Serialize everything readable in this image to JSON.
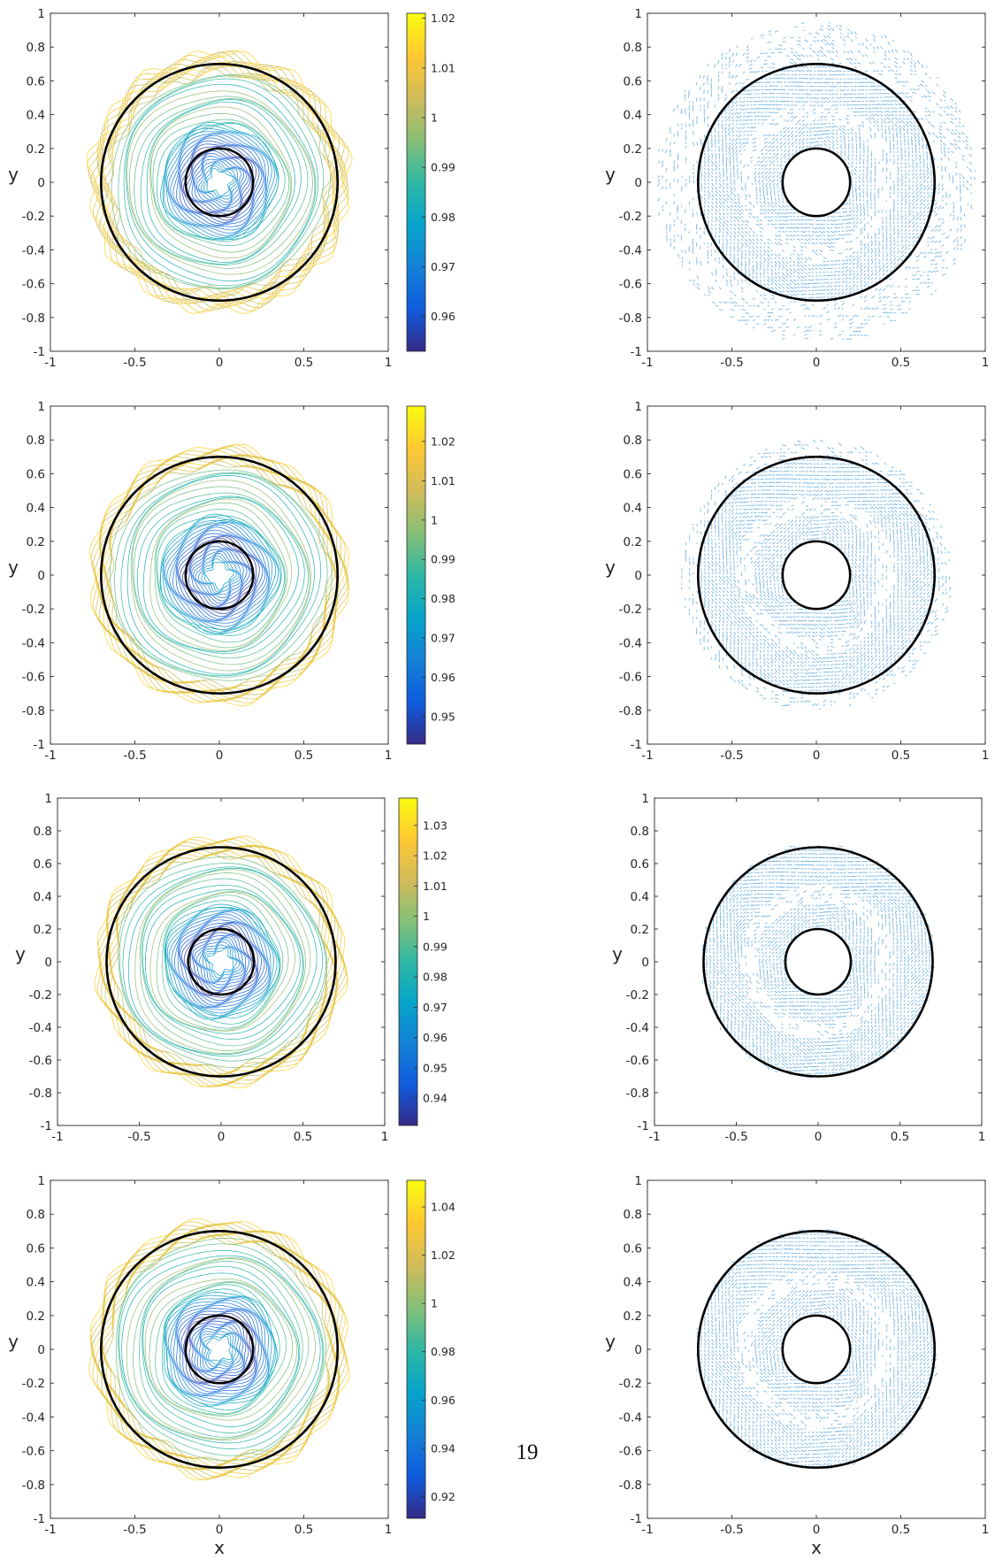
{
  "page_number": "19",
  "axes": {
    "x_ticks": [
      "-1",
      "-0.5",
      "0",
      "0.5",
      "1"
    ],
    "y_ticks": [
      "-1",
      "-0.8",
      "-0.6",
      "-0.4",
      "-0.2",
      "0",
      "0.2",
      "0.4",
      "0.6",
      "0.8",
      "1"
    ],
    "xlabel": "x",
    "ylabel": "y"
  },
  "colors": {
    "circle": "#000000",
    "quiver": "#4d9fdb",
    "parula": [
      "#352a87",
      "#0f5cdd",
      "#1481d6",
      "#06a4ca",
      "#2eb7a4",
      "#87bf77",
      "#d1bb59",
      "#fec832",
      "#f9fb0e"
    ]
  },
  "chart_data": [
    {
      "type": "contour",
      "panel": "row1-left",
      "xlim": [
        -1,
        1
      ],
      "ylim": [
        -1,
        1
      ],
      "circles_radius": [
        0.2,
        0.7
      ],
      "colorbar": {
        "min": 0.953,
        "max": 1.021,
        "ticks": [
          "0.96",
          "0.97",
          "0.98",
          "0.99",
          "1",
          "1.01",
          "1.02"
        ]
      }
    },
    {
      "type": "quiver",
      "panel": "row1-right",
      "xlim": [
        -1,
        1
      ],
      "ylim": [
        -1,
        1
      ],
      "circles_radius": [
        0.2,
        0.7
      ],
      "spread": 0.25
    },
    {
      "type": "contour",
      "panel": "row2-left",
      "xlim": [
        -1,
        1
      ],
      "ylim": [
        -1,
        1
      ],
      "circles_radius": [
        0.2,
        0.7
      ],
      "colorbar": {
        "min": 0.943,
        "max": 1.029,
        "ticks": [
          "0.95",
          "0.96",
          "0.97",
          "0.98",
          "0.99",
          "1",
          "1.01",
          "1.02"
        ]
      }
    },
    {
      "type": "quiver",
      "panel": "row2-right",
      "xlim": [
        -1,
        1
      ],
      "ylim": [
        -1,
        1
      ],
      "circles_radius": [
        0.2,
        0.7
      ],
      "spread": 0.1
    },
    {
      "type": "contour",
      "panel": "row3-left",
      "xlim": [
        -1,
        1
      ],
      "ylim": [
        -1,
        1
      ],
      "circles_radius": [
        0.2,
        0.7
      ],
      "colorbar": {
        "min": 0.931,
        "max": 1.039,
        "ticks": [
          "0.94",
          "0.95",
          "0.96",
          "0.97",
          "0.98",
          "0.99",
          "1",
          "1.01",
          "1.02",
          "1.03"
        ]
      }
    },
    {
      "type": "quiver",
      "panel": "row3-right",
      "xlim": [
        -1,
        1
      ],
      "ylim": [
        -1,
        1
      ],
      "circles_radius": [
        0.2,
        0.7
      ],
      "spread": 0.02
    },
    {
      "type": "contour",
      "panel": "row4-left",
      "xlim": [
        -1,
        1
      ],
      "ylim": [
        -1,
        1
      ],
      "circles_radius": [
        0.2,
        0.7
      ],
      "colorbar": {
        "min": 0.911,
        "max": 1.051,
        "ticks": [
          "0.92",
          "0.94",
          "0.96",
          "0.98",
          "1",
          "1.02",
          "1.04"
        ]
      }
    },
    {
      "type": "quiver",
      "panel": "row4-right",
      "xlim": [
        -1,
        1
      ],
      "ylim": [
        -1,
        1
      ],
      "circles_radius": [
        0.2,
        0.7
      ],
      "spread": 0.02
    }
  ]
}
